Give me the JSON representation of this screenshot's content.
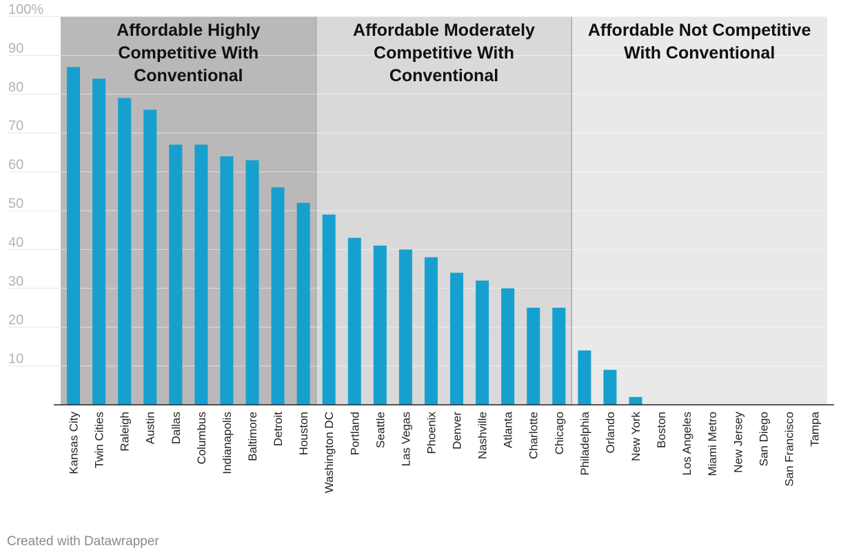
{
  "chart_data": {
    "type": "bar",
    "title": "",
    "xlabel": "",
    "ylabel": "",
    "ylim": [
      0,
      100
    ],
    "yticks": [
      {
        "value": 10,
        "label": "10"
      },
      {
        "value": 20,
        "label": "20"
      },
      {
        "value": 30,
        "label": "30"
      },
      {
        "value": 40,
        "label": "40"
      },
      {
        "value": 50,
        "label": "50"
      },
      {
        "value": 60,
        "label": "60"
      },
      {
        "value": 70,
        "label": "70"
      },
      {
        "value": 80,
        "label": "80"
      },
      {
        "value": 90,
        "label": "90"
      },
      {
        "value": 100,
        "label": "100%"
      }
    ],
    "categories": [
      "Kansas City",
      "Twin Cities",
      "Raleigh",
      "Austin",
      "Dallas",
      "Columbus",
      "Indianapolis",
      "Baltimore",
      "Detroit",
      "Houston",
      "Washington DC",
      "Portland",
      "Seattle",
      "Las Vegas",
      "Phoenix",
      "Denver",
      "Nashville",
      "Atlanta",
      "Charlotte",
      "Chicago",
      "Philadelphia",
      "Orlando",
      "New York",
      "Boston",
      "Los Angeles",
      "Miami Metro",
      "New Jersey",
      "San Diego",
      "San Francisco",
      "Tampa"
    ],
    "values": [
      87,
      84,
      79,
      76,
      67,
      67,
      64,
      63,
      56,
      52,
      49,
      43,
      41,
      40,
      38,
      34,
      32,
      30,
      25,
      25,
      14,
      9,
      2,
      0,
      0,
      0,
      0,
      0,
      0,
      0
    ],
    "bar_color": "#16a0cf",
    "regions": [
      {
        "label_lines": [
          "Affordable Highly",
          "Competitive With",
          "Conventional"
        ],
        "from_index": 0,
        "to_index": 9,
        "color": "#bab8b8"
      },
      {
        "label_lines": [
          "Affordable Moderately",
          "Competitive With",
          "Conventional"
        ],
        "from_index": 10,
        "to_index": 19,
        "color": "#d9d9d9"
      },
      {
        "label_lines": [
          "Affordable Not Competitive",
          "With Conventional"
        ],
        "from_index": 20,
        "to_index": 29,
        "color": "#e9e9e9"
      }
    ]
  },
  "footer": {
    "credit": "Created with Datawrapper"
  }
}
